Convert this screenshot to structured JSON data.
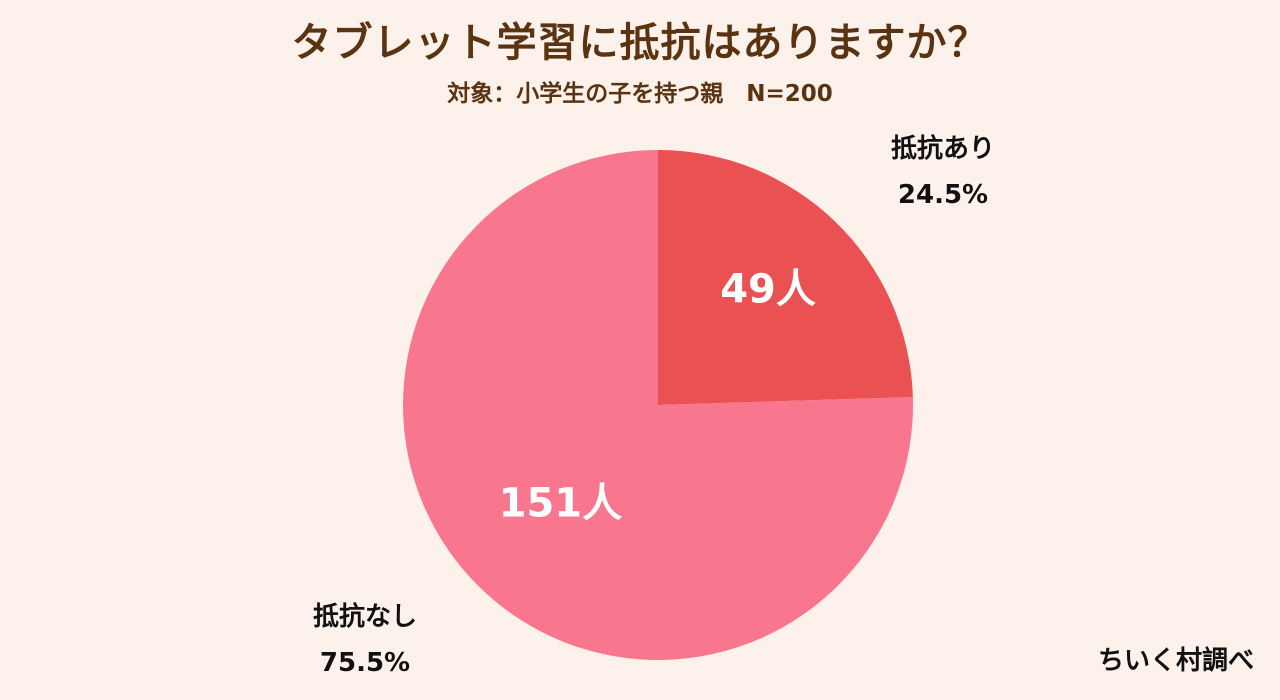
{
  "title": "タブレット学習に抵抗はありますか？",
  "subtitle": "対象：小学生の子を持つ親　N=200",
  "source": "ちいく村調べ",
  "colors": {
    "background": "#fdf1ec",
    "title": "#5a3410",
    "slice_yes": "#e95152",
    "slice_no": "#f8778f"
  },
  "chart_data": {
    "type": "pie",
    "total": 200,
    "start_angle_deg": 0,
    "direction": "clockwise",
    "slices": [
      {
        "label": "抵抗あり",
        "count": 49,
        "count_label": "49人",
        "percent": 24.5,
        "percent_label": "24.5%",
        "color": "#e95152"
      },
      {
        "label": "抵抗なし",
        "count": 151,
        "count_label": "151人",
        "percent": 75.5,
        "percent_label": "75.5%",
        "color": "#f8778f"
      }
    ]
  }
}
